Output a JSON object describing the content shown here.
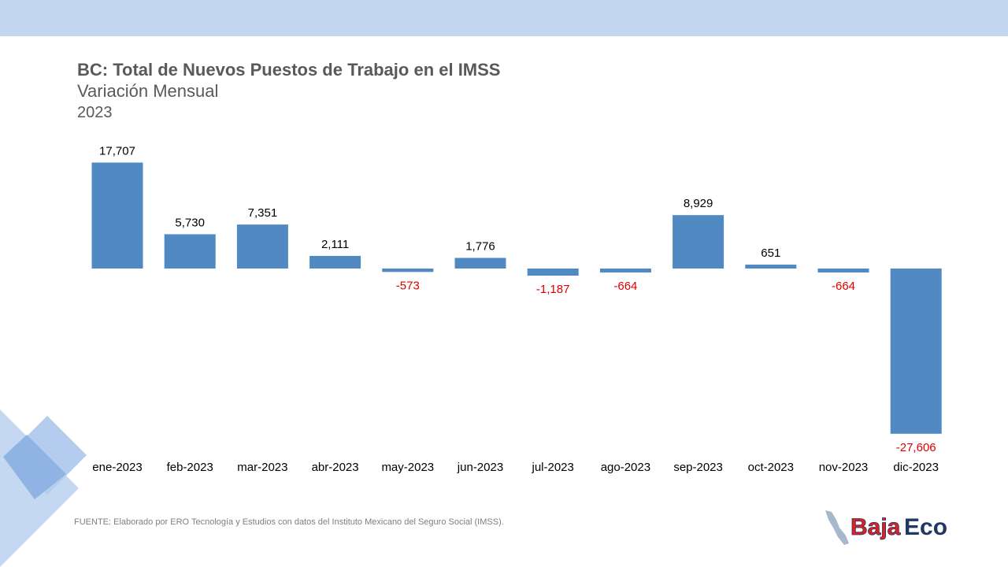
{
  "header": {
    "title": "BC: Total de Nuevos Puestos de Trabajo en el IMSS",
    "subtitle": "Variación Mensual",
    "year": "2023"
  },
  "chart_data": {
    "type": "bar",
    "title": "BC: Total de Nuevos Puestos de Trabajo en el IMSS",
    "subtitle": "Variación Mensual",
    "categories": [
      "ene-2023",
      "feb-2023",
      "mar-2023",
      "abr-2023",
      "may-2023",
      "jun-2023",
      "jul-2023",
      "ago-2023",
      "sep-2023",
      "oct-2023",
      "nov-2023",
      "dic-2023"
    ],
    "values": [
      17707,
      5730,
      7351,
      2111,
      -573,
      1776,
      -1187,
      -664,
      8929,
      651,
      -664,
      -27606
    ],
    "value_labels": [
      "17,707",
      "5,730",
      "7,351",
      "2,111",
      "-573",
      "1,776",
      "-1,187",
      "-664",
      "8,929",
      "651",
      "-664",
      "-27,606"
    ],
    "xlabel": "",
    "ylabel": "",
    "ylim": [
      -27606,
      17707
    ],
    "grid": false,
    "legend": "none",
    "colors": {
      "bar": "#5189c3",
      "positive_label": "#000000",
      "negative_label": "#e00000"
    }
  },
  "footer": {
    "source": "FUENTE: Elaborado por ERO Tecnología y Estudios con datos del Instituto Mexicano del Seguro Social (IMSS).",
    "logo_text_1": "Baja",
    "logo_text_2": "Eco"
  },
  "colors": {
    "top_band": "#c2d6f0",
    "title": "#595959",
    "logo_red": "#e02020",
    "logo_navy": "#1f3864"
  }
}
